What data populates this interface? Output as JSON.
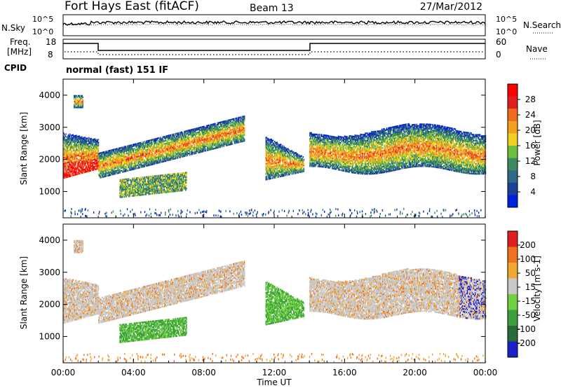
{
  "header": {
    "station": "Fort Hays East (fitACF)",
    "beam": "Beam 13",
    "date": "27/Mar/2012"
  },
  "noise_panel": {
    "left_label": "N.Sky",
    "right_label": "N.Search",
    "left_ticks": [
      "10^5",
      "10^0"
    ],
    "right_ticks": [
      "10^5",
      "10^0"
    ]
  },
  "freq_panel": {
    "left_label_1": "Freq.",
    "left_label_2": "[MHz]",
    "left_ticks": [
      "18",
      "8"
    ],
    "right_label": "Nave",
    "right_ticks": [
      "60",
      "0"
    ],
    "cpid_label": "CPID",
    "mode_text": "normal (fast) 151 IF"
  },
  "chart_data": [
    {
      "type": "heatmap",
      "name": "power",
      "ylabel": "Slant Range [km]",
      "yticks": [
        "4000",
        "3000",
        "2000",
        "1000"
      ],
      "ylim": [
        180,
        4500
      ],
      "colorbar_label": "Power [dB]",
      "colorbar_ticks": [
        "28",
        "24",
        "20",
        "16",
        "12",
        "8",
        "4"
      ],
      "colors": [
        "#0022dd",
        "#1f3f9a",
        "#2e6b85",
        "#3c8b5e",
        "#6fbf3f",
        "#f0d020",
        "#f2a020",
        "#f06a20",
        "#e02020",
        "#ff0000"
      ]
    },
    {
      "type": "heatmap",
      "name": "velocity",
      "ylabel": "Slant Range [km]",
      "yticks": [
        "4000",
        "3000",
        "2000",
        "1000"
      ],
      "ylim": [
        180,
        4500
      ],
      "colorbar_label": "Velocity [m s-1]",
      "colorbar_ticks": [
        "200",
        "100",
        "50",
        "15",
        "-15",
        "-50",
        "-100",
        "-200"
      ],
      "colors": [
        "#1a22c8",
        "#2a6a3a",
        "#3ca03c",
        "#70d040",
        "#c8c8c8",
        "#f2a830",
        "#f07020",
        "#e02020"
      ]
    }
  ],
  "xaxis": {
    "ticks": [
      "00:00",
      "04:00",
      "08:00",
      "12:00",
      "16:00",
      "20:00",
      "00:00"
    ],
    "label": "Time UT"
  }
}
